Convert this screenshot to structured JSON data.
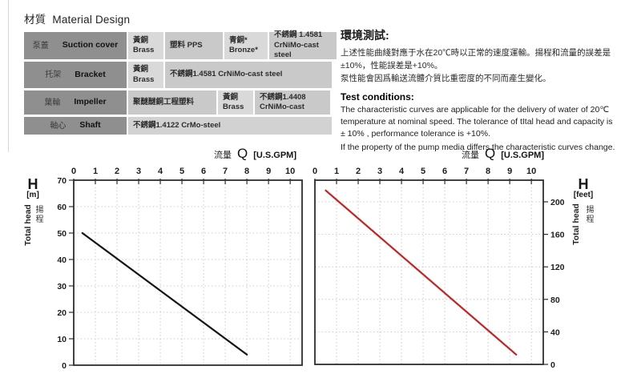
{
  "page": {
    "title_cjk": "材質",
    "title_en": "Material Design"
  },
  "material_table": {
    "rows": [
      {
        "label_cjk": "泵蓋",
        "label_en": "Suction cover",
        "cells": [
          {
            "line1": "黃銅",
            "line2": "Brass"
          },
          {
            "line1": "塑料  PPS",
            "line2": ""
          },
          {
            "line1": "青銅*",
            "line2": "Bronze*"
          },
          {
            "line1": "不銹鋼  1.4581",
            "line2": "CrNiMo-cast steel"
          }
        ]
      },
      {
        "label_cjk": "托架",
        "label_en": "Bracket",
        "cells": [
          {
            "line1": "黃銅",
            "line2": "Brass"
          },
          {
            "line1": "不銹鋼1.4581    CrNiMo-cast steel",
            "line2": ""
          }
        ]
      },
      {
        "label_cjk": "葉輪",
        "label_en": "Impeller",
        "cells": [
          {
            "line1": "聚醚醚銅工程塑料",
            "line2": ""
          },
          {
            "line1": "黃銅",
            "line2": "Brass"
          },
          {
            "line1": "不銹鋼1.4408",
            "line2": "CrNiMo-cast"
          }
        ]
      },
      {
        "label_cjk": "軸心",
        "label_en": "Shaft",
        "cells": [
          {
            "line1": "不銹鋼1.4122    CrMo-steel",
            "line2": ""
          }
        ]
      }
    ]
  },
  "env_test": {
    "heading": "環境測試:",
    "lines": [
      "上述性能曲綫對應于水在20℃時以正常的速度運輸。揚程和流量的誤差是",
      "±10%，性能誤差是+10%。",
      "泵性能會因爲輸送流體介質比重密度的不同而產生變化。"
    ]
  },
  "test_conditions": {
    "heading": "Test conditions:",
    "lines": [
      "The characteristic curves are applicable for the delivery of water of 20℃",
      "temperature at nominal speed. The tolerance of tItal head and capacity is",
      "± 10% , performance tolerance is +10%.",
      "If the property of the pump media differs the characteristic curves change."
    ]
  },
  "flow_axis": {
    "cjk": "流量",
    "q": "Q",
    "unit": "[U.S.GPM]"
  },
  "chart_data": [
    {
      "type": "line",
      "title": "流量 Q [U.S.GPM]",
      "xlabel": "Q [U.S.GPM]",
      "ylabel": "H [m] Total head 揚程",
      "ylabel_h": "H",
      "ylabel_unit": "[m]",
      "ylabel_en": "Total head",
      "ylabel_cjk": "揚程",
      "y_axis_side": "left",
      "xlim": [
        0,
        10.55
      ],
      "ylim": [
        0,
        70
      ],
      "x_ticks": [
        0,
        1,
        2,
        3,
        4,
        5,
        6,
        7,
        8,
        9,
        10
      ],
      "y_ticks": [
        0,
        10,
        20,
        30,
        40,
        50,
        60,
        70
      ],
      "x_grid": [
        1,
        2,
        3,
        4,
        5,
        6,
        7,
        8,
        9,
        10
      ],
      "y_grid": [
        10,
        20,
        30,
        40,
        50,
        60
      ],
      "grid": true,
      "legend": "none",
      "series": [
        {
          "name": "head-capacity-curve-metric",
          "color": "#151515",
          "points": [
            [
              0.4,
              50
            ],
            [
              8.0,
              4
            ]
          ]
        }
      ]
    },
    {
      "type": "line",
      "title": "流量 Q [U.S.GPM]",
      "xlabel": "Q [U.S.GPM]",
      "ylabel": "H [feet] Total head 揚程",
      "ylabel_h": "H",
      "ylabel_unit": "[feet]",
      "ylabel_en": "Total head",
      "ylabel_cjk": "揚程",
      "y_axis_side": "right",
      "xlim": [
        0,
        10.55
      ],
      "ylim": [
        0,
        226.6
      ],
      "x_ticks": [
        0,
        1,
        2,
        3,
        4,
        5,
        6,
        7,
        8,
        9,
        10
      ],
      "y_ticks": [
        0,
        40,
        80,
        120,
        160,
        200
      ],
      "x_grid": [
        1,
        2,
        3,
        4,
        5,
        6,
        7,
        8,
        9,
        10
      ],
      "y_grid": [
        40,
        80,
        120,
        160,
        200
      ],
      "grid": true,
      "legend": "none",
      "series": [
        {
          "name": "head-capacity-curve-feet",
          "color": "#c52220",
          "points": [
            [
              0.5,
              214
            ],
            [
              9.3,
              12
            ]
          ]
        }
      ]
    }
  ]
}
